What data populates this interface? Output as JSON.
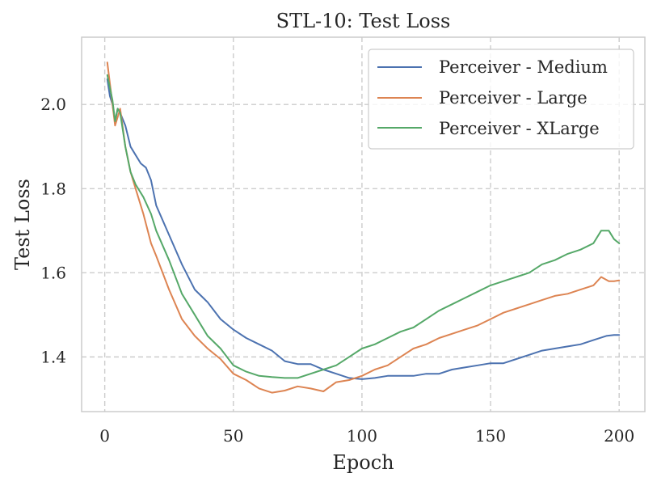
{
  "chart_data": {
    "type": "line",
    "title": "STL-10: Test Loss",
    "xlabel": "Epoch",
    "ylabel": "Test Loss",
    "xlim": [
      -9,
      210
    ],
    "ylim": [
      1.27,
      2.16
    ],
    "x_ticks": [
      0,
      50,
      100,
      150,
      200
    ],
    "x_tick_labels": [
      "0",
      "50",
      "100",
      "150",
      "200"
    ],
    "y_ticks": [
      1.4,
      1.6,
      1.8,
      2.0
    ],
    "y_tick_labels": [
      "1.4",
      "1.6",
      "1.8",
      "2.0"
    ],
    "grid": true,
    "legend_position": "top-right",
    "colors": {
      "grid": "#cccccc",
      "frame": "#cccccc"
    },
    "series": [
      {
        "name": "Perceiver - Medium",
        "color": "#4c72b0",
        "points": [
          [
            1,
            2.06
          ],
          [
            2,
            2.02
          ],
          [
            3,
            2.0
          ],
          [
            4,
            1.96
          ],
          [
            5,
            1.99
          ],
          [
            6,
            1.98
          ],
          [
            8,
            1.95
          ],
          [
            10,
            1.9
          ],
          [
            12,
            1.88
          ],
          [
            14,
            1.86
          ],
          [
            16,
            1.85
          ],
          [
            18,
            1.82
          ],
          [
            20,
            1.76
          ],
          [
            25,
            1.69
          ],
          [
            30,
            1.62
          ],
          [
            35,
            1.56
          ],
          [
            40,
            1.53
          ],
          [
            45,
            1.49
          ],
          [
            50,
            1.465
          ],
          [
            55,
            1.445
          ],
          [
            60,
            1.43
          ],
          [
            65,
            1.415
          ],
          [
            70,
            1.39
          ],
          [
            75,
            1.383
          ],
          [
            80,
            1.383
          ],
          [
            85,
            1.37
          ],
          [
            90,
            1.36
          ],
          [
            95,
            1.35
          ],
          [
            100,
            1.347
          ],
          [
            105,
            1.35
          ],
          [
            110,
            1.355
          ],
          [
            115,
            1.355
          ],
          [
            120,
            1.355
          ],
          [
            125,
            1.36
          ],
          [
            130,
            1.36
          ],
          [
            135,
            1.37
          ],
          [
            140,
            1.375
          ],
          [
            145,
            1.38
          ],
          [
            150,
            1.385
          ],
          [
            155,
            1.385
          ],
          [
            160,
            1.395
          ],
          [
            165,
            1.405
          ],
          [
            170,
            1.415
          ],
          [
            175,
            1.42
          ],
          [
            180,
            1.425
          ],
          [
            185,
            1.43
          ],
          [
            190,
            1.44
          ],
          [
            195,
            1.45
          ],
          [
            198,
            1.452
          ],
          [
            200,
            1.452
          ]
        ]
      },
      {
        "name": "Perceiver - Large",
        "color": "#dd8452",
        "points": [
          [
            1,
            2.1
          ],
          [
            2,
            2.05
          ],
          [
            3,
            2.0
          ],
          [
            4,
            1.95
          ],
          [
            5,
            1.97
          ],
          [
            6,
            1.99
          ],
          [
            8,
            1.9
          ],
          [
            10,
            1.84
          ],
          [
            12,
            1.8
          ],
          [
            15,
            1.74
          ],
          [
            18,
            1.67
          ],
          [
            20,
            1.64
          ],
          [
            25,
            1.56
          ],
          [
            30,
            1.49
          ],
          [
            35,
            1.45
          ],
          [
            40,
            1.42
          ],
          [
            45,
            1.395
          ],
          [
            50,
            1.36
          ],
          [
            55,
            1.345
          ],
          [
            60,
            1.325
          ],
          [
            65,
            1.315
          ],
          [
            70,
            1.32
          ],
          [
            75,
            1.33
          ],
          [
            80,
            1.325
          ],
          [
            85,
            1.318
          ],
          [
            90,
            1.34
          ],
          [
            95,
            1.345
          ],
          [
            100,
            1.355
          ],
          [
            105,
            1.37
          ],
          [
            110,
            1.38
          ],
          [
            115,
            1.4
          ],
          [
            120,
            1.42
          ],
          [
            125,
            1.43
          ],
          [
            130,
            1.445
          ],
          [
            135,
            1.455
          ],
          [
            140,
            1.465
          ],
          [
            145,
            1.475
          ],
          [
            150,
            1.49
          ],
          [
            155,
            1.505
          ],
          [
            160,
            1.515
          ],
          [
            165,
            1.525
          ],
          [
            170,
            1.535
          ],
          [
            175,
            1.545
          ],
          [
            180,
            1.55
          ],
          [
            185,
            1.56
          ],
          [
            190,
            1.57
          ],
          [
            193,
            1.59
          ],
          [
            196,
            1.58
          ],
          [
            198,
            1.58
          ],
          [
            200,
            1.582
          ]
        ]
      },
      {
        "name": "Perceiver - XLarge",
        "color": "#55a868",
        "points": [
          [
            1,
            2.07
          ],
          [
            2,
            2.04
          ],
          [
            3,
            2.01
          ],
          [
            4,
            1.96
          ],
          [
            5,
            1.99
          ],
          [
            6,
            1.98
          ],
          [
            8,
            1.9
          ],
          [
            10,
            1.84
          ],
          [
            12,
            1.81
          ],
          [
            15,
            1.78
          ],
          [
            18,
            1.74
          ],
          [
            20,
            1.7
          ],
          [
            25,
            1.63
          ],
          [
            30,
            1.55
          ],
          [
            35,
            1.5
          ],
          [
            40,
            1.45
          ],
          [
            45,
            1.42
          ],
          [
            50,
            1.38
          ],
          [
            55,
            1.365
          ],
          [
            60,
            1.355
          ],
          [
            65,
            1.352
          ],
          [
            70,
            1.35
          ],
          [
            75,
            1.35
          ],
          [
            80,
            1.36
          ],
          [
            85,
            1.37
          ],
          [
            90,
            1.38
          ],
          [
            95,
            1.4
          ],
          [
            100,
            1.42
          ],
          [
            105,
            1.43
          ],
          [
            110,
            1.445
          ],
          [
            115,
            1.46
          ],
          [
            120,
            1.47
          ],
          [
            125,
            1.49
          ],
          [
            130,
            1.51
          ],
          [
            135,
            1.525
          ],
          [
            140,
            1.54
          ],
          [
            145,
            1.555
          ],
          [
            150,
            1.57
          ],
          [
            155,
            1.58
          ],
          [
            160,
            1.59
          ],
          [
            165,
            1.6
          ],
          [
            170,
            1.62
          ],
          [
            175,
            1.63
          ],
          [
            180,
            1.645
          ],
          [
            185,
            1.655
          ],
          [
            190,
            1.67
          ],
          [
            193,
            1.7
          ],
          [
            196,
            1.7
          ],
          [
            198,
            1.68
          ],
          [
            200,
            1.67
          ]
        ]
      }
    ]
  }
}
